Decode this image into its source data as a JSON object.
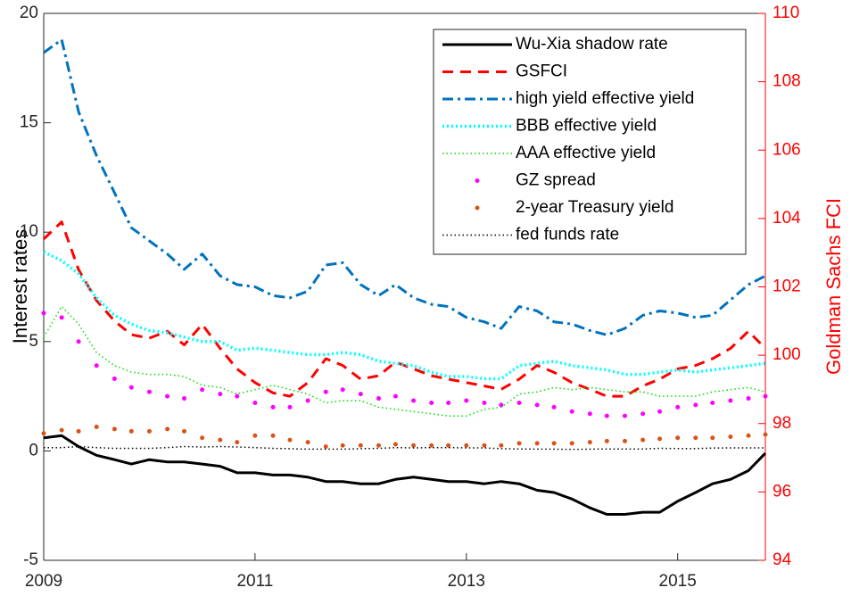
{
  "chart_data": {
    "type": "line",
    "ylabel": "Interest rates",
    "y2label": "Goldman Sachs FCI",
    "x": [
      2009,
      2009.17,
      2009.33,
      2009.5,
      2009.67,
      2009.83,
      2010,
      2010.17,
      2010.33,
      2010.5,
      2010.67,
      2010.83,
      2011,
      2011.17,
      2011.33,
      2011.5,
      2011.67,
      2011.83,
      2012,
      2012.17,
      2012.33,
      2012.5,
      2012.67,
      2012.83,
      2013,
      2013.17,
      2013.33,
      2013.5,
      2013.67,
      2013.83,
      2014,
      2014.17,
      2014.33,
      2014.5,
      2014.67,
      2014.83,
      2015,
      2015.17,
      2015.33,
      2015.5,
      2015.67,
      2015.83
    ],
    "xlim": [
      2009,
      2015.83
    ],
    "xticks": [
      2009,
      2011,
      2013,
      2015
    ],
    "ylim": [
      -5,
      20
    ],
    "yticks": [
      -5,
      0,
      5,
      10,
      15,
      20
    ],
    "y2lim": [
      94,
      110
    ],
    "y2ticks": [
      94,
      96,
      98,
      100,
      102,
      104,
      106,
      108,
      110
    ],
    "y2color": "#ff0000",
    "legend": "northeast",
    "series": [
      {
        "name": "Wu-Xia shadow rate",
        "color": "#000000",
        "line_style": "solid",
        "values": [
          0.6,
          0.7,
          0.2,
          -0.2,
          -0.4,
          -0.6,
          -0.4,
          -0.5,
          -0.5,
          -0.6,
          -0.7,
          -1.0,
          -1.0,
          -1.1,
          -1.1,
          -1.2,
          -1.4,
          -1.4,
          -1.5,
          -1.5,
          -1.3,
          -1.2,
          -1.3,
          -1.4,
          -1.4,
          -1.5,
          -1.4,
          -1.5,
          -1.8,
          -1.9,
          -2.2,
          -2.6,
          -2.9,
          -2.9,
          -2.8,
          -2.8,
          -2.3,
          -1.9,
          -1.5,
          -1.3,
          -0.9,
          -0.1
        ]
      },
      {
        "name": "GSFCI",
        "color": "#ff0000",
        "line_style": "dashed",
        "axis": "y2",
        "values": [
          103.4,
          103.9,
          102.5,
          101.6,
          101.0,
          100.6,
          100.5,
          100.7,
          100.3,
          100.9,
          100.2,
          99.6,
          99.2,
          98.9,
          98.8,
          99.2,
          99.9,
          99.7,
          99.3,
          99.4,
          99.8,
          99.6,
          99.4,
          99.3,
          99.2,
          99.1,
          99.0,
          99.3,
          99.7,
          99.5,
          99.2,
          99.0,
          98.8,
          98.8,
          99.1,
          99.3,
          99.6,
          99.7,
          99.9,
          100.2,
          100.7,
          100.2
        ]
      },
      {
        "name": "high yield effective yield",
        "color": "#0072bd",
        "line_style": "dashdot",
        "values": [
          18.2,
          18.8,
          15.5,
          13.5,
          11.8,
          10.2,
          9.6,
          9.0,
          8.3,
          9.0,
          8.0,
          7.6,
          7.5,
          7.1,
          7.0,
          7.3,
          8.5,
          8.6,
          7.6,
          7.1,
          7.6,
          7.0,
          6.7,
          6.6,
          6.1,
          5.9,
          5.6,
          6.6,
          6.4,
          5.9,
          5.8,
          5.5,
          5.3,
          5.6,
          6.2,
          6.4,
          6.3,
          6.1,
          6.2,
          6.9,
          7.6,
          8.0
        ]
      },
      {
        "name": "BBB effective yield",
        "color": "#00ffff",
        "line_style": "dotted",
        "values": [
          9.1,
          8.7,
          8.1,
          7.0,
          6.2,
          5.8,
          5.5,
          5.4,
          5.2,
          5.0,
          5.0,
          4.6,
          4.7,
          4.6,
          4.5,
          4.4,
          4.4,
          4.5,
          4.4,
          4.1,
          4.0,
          3.9,
          3.6,
          3.4,
          3.4,
          3.3,
          3.3,
          3.9,
          4.0,
          4.1,
          3.9,
          3.8,
          3.7,
          3.5,
          3.5,
          3.6,
          3.7,
          3.6,
          3.7,
          3.8,
          3.9,
          4.0
        ]
      },
      {
        "name": "AAA effective yield",
        "color": "#00dd00",
        "line_style": "thin-dotted",
        "values": [
          5.2,
          6.6,
          5.8,
          4.5,
          3.9,
          3.6,
          3.5,
          3.5,
          3.4,
          3.0,
          2.9,
          2.6,
          2.8,
          3.0,
          2.8,
          2.6,
          2.2,
          2.3,
          2.3,
          2.0,
          1.9,
          1.8,
          1.7,
          1.6,
          1.6,
          1.9,
          2.0,
          2.6,
          2.7,
          2.9,
          2.8,
          2.9,
          2.8,
          2.7,
          2.7,
          2.5,
          2.5,
          2.5,
          2.7,
          2.8,
          2.9,
          2.7
        ]
      },
      {
        "name": "GZ spread",
        "color": "#ff00ff",
        "line_style": "markers",
        "values": [
          6.3,
          6.1,
          5.0,
          3.9,
          3.3,
          2.9,
          2.7,
          2.5,
          2.4,
          2.8,
          2.6,
          2.5,
          2.2,
          2.0,
          2.0,
          2.3,
          2.7,
          2.8,
          2.6,
          2.4,
          2.5,
          2.3,
          2.2,
          2.2,
          2.3,
          2.2,
          2.1,
          2.2,
          2.1,
          2.0,
          1.8,
          1.7,
          1.6,
          1.6,
          1.7,
          1.8,
          2.0,
          2.1,
          2.2,
          2.3,
          2.4,
          2.5
        ]
      },
      {
        "name": "2-year Treasury yield",
        "color": "#d95319",
        "line_style": "markers",
        "values": [
          0.8,
          0.95,
          0.9,
          1.1,
          1.0,
          0.9,
          0.9,
          1.0,
          0.9,
          0.6,
          0.5,
          0.4,
          0.7,
          0.7,
          0.5,
          0.4,
          0.2,
          0.25,
          0.25,
          0.25,
          0.3,
          0.25,
          0.25,
          0.25,
          0.25,
          0.25,
          0.25,
          0.35,
          0.35,
          0.35,
          0.35,
          0.4,
          0.45,
          0.45,
          0.5,
          0.55,
          0.6,
          0.6,
          0.6,
          0.65,
          0.7,
          0.75
        ]
      },
      {
        "name": "fed funds rate",
        "color": "#000000",
        "line_style": "thin-dotted",
        "values": [
          0.15,
          0.15,
          0.2,
          0.15,
          0.12,
          0.12,
          0.12,
          0.15,
          0.2,
          0.18,
          0.2,
          0.18,
          0.15,
          0.12,
          0.1,
          0.08,
          0.08,
          0.08,
          0.1,
          0.12,
          0.15,
          0.14,
          0.15,
          0.15,
          0.14,
          0.14,
          0.1,
          0.09,
          0.08,
          0.08,
          0.07,
          0.08,
          0.09,
          0.09,
          0.09,
          0.12,
          0.11,
          0.11,
          0.13,
          0.14,
          0.14,
          0.14
        ]
      }
    ]
  }
}
